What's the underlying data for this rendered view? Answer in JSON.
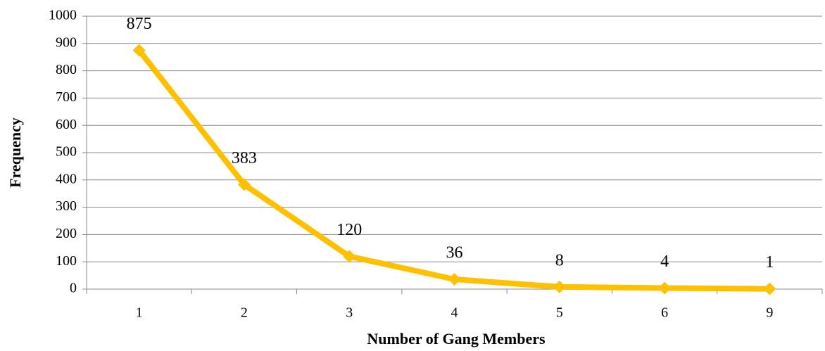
{
  "chart_data": {
    "type": "line",
    "x_label": "Number of Gang Members",
    "y_label": "Frequency",
    "categories": [
      "1",
      "2",
      "3",
      "4",
      "5",
      "6",
      "9"
    ],
    "values": [
      875,
      383,
      120,
      36,
      8,
      4,
      1
    ],
    "color": "#ffc000",
    "ylim": [
      0,
      1000
    ],
    "yticks": [
      0,
      100,
      200,
      300,
      400,
      500,
      600,
      700,
      800,
      900,
      1000
    ],
    "grid": true
  }
}
